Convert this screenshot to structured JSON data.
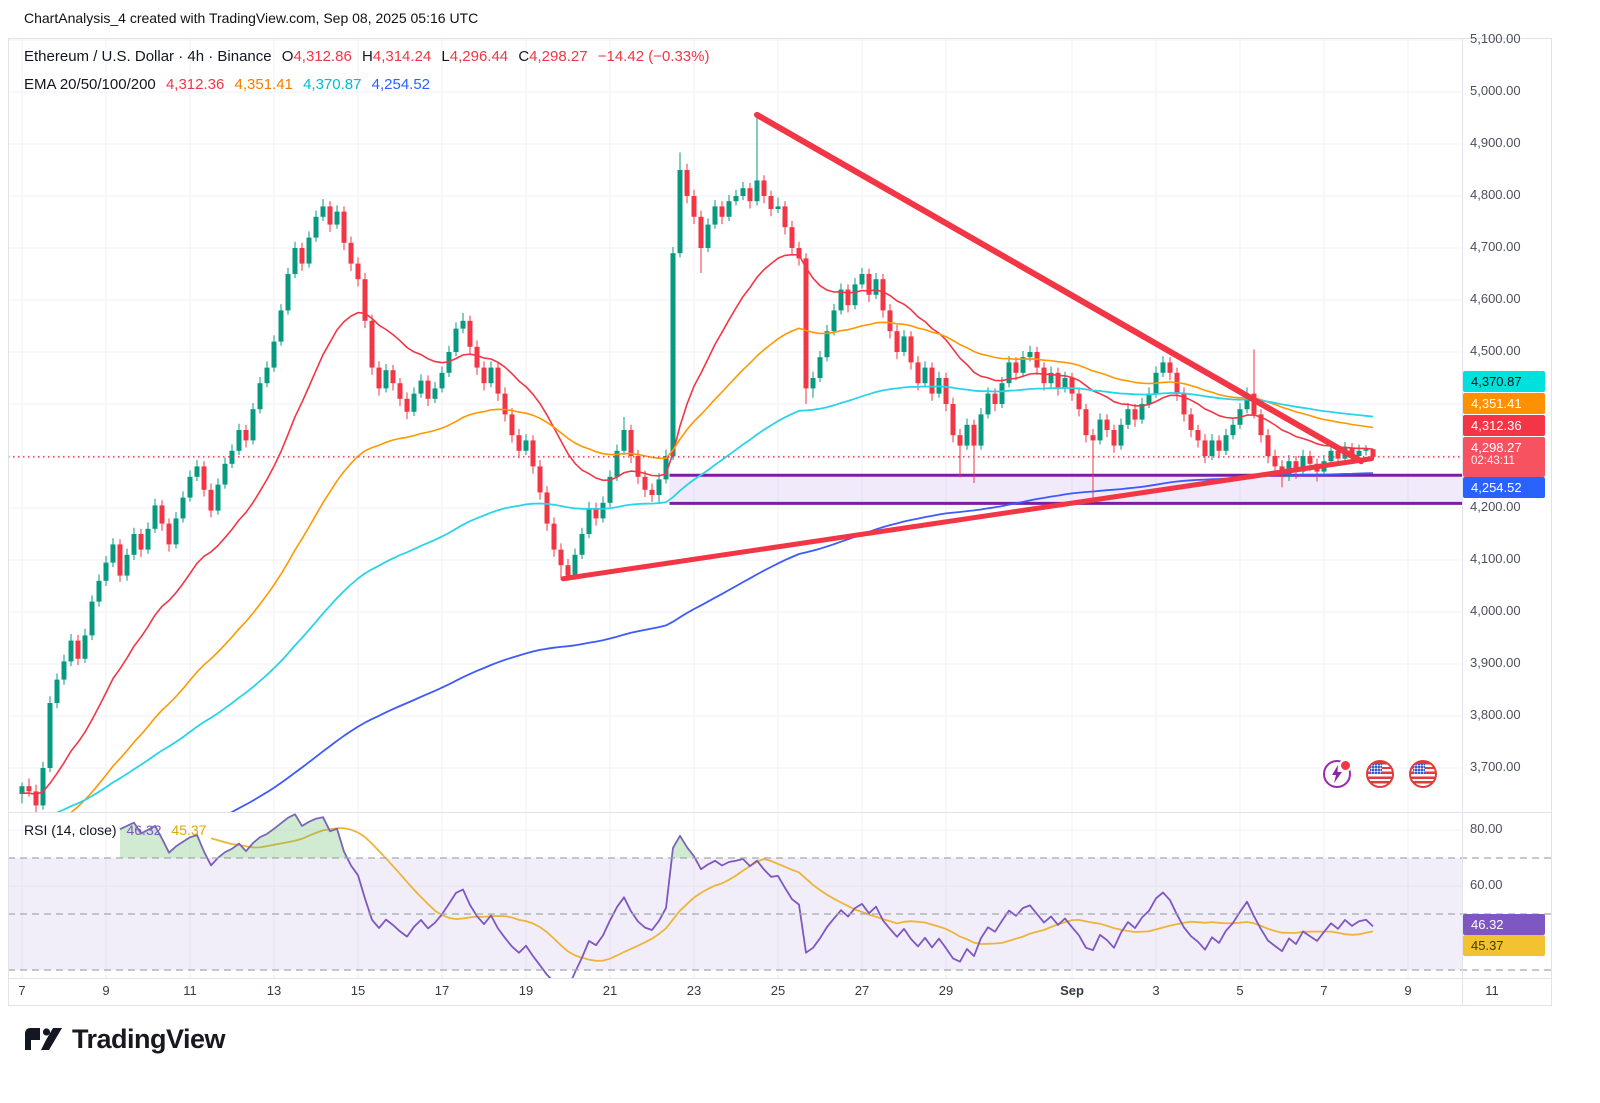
{
  "header": {
    "info_line": "ChartAnalysis_4 created with TradingView.com, Sep 08, 2025 05:16 UTC",
    "symbol": "Ethereum / U.S. Dollar · 4h · Binance",
    "o_label": "O",
    "o_val": "4,312.86",
    "h_label": "H",
    "h_val": "4,314.24",
    "l_label": "L",
    "l_val": "4,296.44",
    "c_label": "C",
    "c_val": "4,298.27",
    "change": "−14.42 (−0.33%)",
    "ema_label": "EMA 20/50/100/200",
    "ema_vals": [
      "4,312.36",
      "4,351.41",
      "4,370.87",
      "4,254.52"
    ]
  },
  "rsi_header": {
    "label": "RSI (14, close)",
    "value": "46.32",
    "ma_value": "45.37"
  },
  "footer": {
    "brand": "TradingView"
  },
  "icons": {
    "gauge": "technicals-gauge",
    "flag1": "us-flag",
    "flag2": "us-flag"
  },
  "chart_data": {
    "type": "candlestick",
    "title": "Ethereum / U.S. Dollar 4h Binance",
    "timeframe": "4h",
    "start_time": "Aug 7 00:00",
    "end_time": "Sep 8 04:00",
    "ylim": [
      3615,
      5104
    ],
    "colors": {
      "up": "#089981",
      "down": "#f23645"
    },
    "y_axis": {
      "prices": [
        5100,
        5000,
        4900,
        4800,
        4700,
        4600,
        4500,
        4400,
        4300,
        4200,
        4100,
        4000,
        3900,
        3800,
        3700
      ]
    },
    "x_axis": {
      "ticks": [
        {
          "l": "7",
          "d": 0
        },
        {
          "l": "9",
          "d": 2
        },
        {
          "l": "11",
          "d": 4
        },
        {
          "l": "13",
          "d": 6
        },
        {
          "l": "15",
          "d": 8
        },
        {
          "l": "17",
          "d": 10
        },
        {
          "l": "19",
          "d": 12
        },
        {
          "l": "21",
          "d": 14
        },
        {
          "l": "23",
          "d": 16
        },
        {
          "l": "25",
          "d": 18
        },
        {
          "l": "27",
          "d": 20
        },
        {
          "l": "29",
          "d": 22
        },
        {
          "l": "Sep",
          "d": 25,
          "b": 1
        },
        {
          "l": "3",
          "d": 27
        },
        {
          "l": "5",
          "d": 29
        },
        {
          "l": "7",
          "d": 31
        },
        {
          "l": "9",
          "d": 33
        },
        {
          "l": "11",
          "d": 35
        }
      ]
    },
    "candles": [
      [
        3650,
        3672,
        3632,
        3665
      ],
      [
        3665,
        3680,
        3645,
        3655
      ],
      [
        3655,
        3668,
        3612,
        3628
      ],
      [
        3628,
        3712,
        3620,
        3700
      ],
      [
        3700,
        3838,
        3692,
        3825
      ],
      [
        3825,
        3882,
        3815,
        3870
      ],
      [
        3870,
        3918,
        3860,
        3905
      ],
      [
        3905,
        3958,
        3896,
        3945
      ],
      [
        3945,
        3956,
        3898,
        3910
      ],
      [
        3910,
        3968,
        3902,
        3955
      ],
      [
        3955,
        4032,
        3946,
        4020
      ],
      [
        4020,
        4072,
        4010,
        4060
      ],
      [
        4060,
        4108,
        4050,
        4095
      ],
      [
        4095,
        4142,
        4086,
        4130
      ],
      [
        4130,
        4140,
        4058,
        4070
      ],
      [
        4070,
        4122,
        4060,
        4110
      ],
      [
        4110,
        4162,
        4100,
        4150
      ],
      [
        4150,
        4160,
        4106,
        4120
      ],
      [
        4120,
        4172,
        4112,
        4160
      ],
      [
        4160,
        4218,
        4152,
        4205
      ],
      [
        4205,
        4215,
        4156,
        4170
      ],
      [
        4170,
        4180,
        4116,
        4130
      ],
      [
        4130,
        4192,
        4122,
        4180
      ],
      [
        4180,
        4232,
        4172,
        4220
      ],
      [
        4220,
        4272,
        4212,
        4260
      ],
      [
        4260,
        4292,
        4252,
        4280
      ],
      [
        4280,
        4290,
        4222,
        4235
      ],
      [
        4235,
        4247,
        4182,
        4195
      ],
      [
        4195,
        4257,
        4187,
        4245
      ],
      [
        4245,
        4297,
        4237,
        4285
      ],
      [
        4285,
        4322,
        4277,
        4310
      ],
      [
        4310,
        4362,
        4302,
        4350
      ],
      [
        4350,
        4360,
        4316,
        4330
      ],
      [
        4330,
        4402,
        4322,
        4390
      ],
      [
        4390,
        4452,
        4382,
        4440
      ],
      [
        4440,
        4482,
        4432,
        4470
      ],
      [
        4470,
        4532,
        4462,
        4520
      ],
      [
        4520,
        4592,
        4512,
        4580
      ],
      [
        4580,
        4662,
        4572,
        4650
      ],
      [
        4650,
        4712,
        4642,
        4700
      ],
      [
        4700,
        4710,
        4656,
        4670
      ],
      [
        4670,
        4732,
        4662,
        4720
      ],
      [
        4720,
        4772,
        4712,
        4760
      ],
      [
        4760,
        4794,
        4752,
        4780
      ],
      [
        4780,
        4790,
        4731,
        4745
      ],
      [
        4745,
        4782,
        4737,
        4770
      ],
      [
        4770,
        4780,
        4696,
        4710
      ],
      [
        4710,
        4722,
        4656,
        4670
      ],
      [
        4670,
        4682,
        4626,
        4640
      ],
      [
        4640,
        4652,
        4546,
        4560
      ],
      [
        4560,
        4572,
        4456,
        4470
      ],
      [
        4470,
        4482,
        4416,
        4430
      ],
      [
        4430,
        4477,
        4422,
        4465
      ],
      [
        4465,
        4475,
        4426,
        4440
      ],
      [
        4440,
        4450,
        4396,
        4410
      ],
      [
        4410,
        4422,
        4371,
        4385
      ],
      [
        4385,
        4432,
        4377,
        4420
      ],
      [
        4420,
        4457,
        4412,
        4445
      ],
      [
        4445,
        4455,
        4396,
        4410
      ],
      [
        4410,
        4442,
        4402,
        4430
      ],
      [
        4430,
        4472,
        4422,
        4460
      ],
      [
        4460,
        4512,
        4452,
        4500
      ],
      [
        4500,
        4557,
        4492,
        4545
      ],
      [
        4545,
        4575,
        4536,
        4560
      ],
      [
        4560,
        4570,
        4496,
        4510
      ],
      [
        4510,
        4522,
        4456,
        4470
      ],
      [
        4470,
        4482,
        4426,
        4440
      ],
      [
        4440,
        4482,
        4432,
        4470
      ],
      [
        4470,
        4480,
        4406,
        4420
      ],
      [
        4420,
        4432,
        4366,
        4380
      ],
      [
        4380,
        4392,
        4326,
        4340
      ],
      [
        4340,
        4352,
        4296,
        4310
      ],
      [
        4310,
        4342,
        4302,
        4330
      ],
      [
        4330,
        4340,
        4266,
        4280
      ],
      [
        4280,
        4292,
        4216,
        4230
      ],
      [
        4230,
        4242,
        4156,
        4170
      ],
      [
        4170,
        4182,
        4106,
        4120
      ],
      [
        4120,
        4132,
        4062,
        4090
      ],
      [
        4090,
        4102,
        4060,
        4070
      ],
      [
        4070,
        4122,
        4062,
        4110
      ],
      [
        4110,
        4162,
        4102,
        4150
      ],
      [
        4150,
        4212,
        4142,
        4200
      ],
      [
        4200,
        4210,
        4166,
        4180
      ],
      [
        4180,
        4222,
        4172,
        4210
      ],
      [
        4210,
        4272,
        4202,
        4260
      ],
      [
        4260,
        4322,
        4252,
        4310
      ],
      [
        4310,
        4375,
        4302,
        4350
      ],
      [
        4350,
        4360,
        4286,
        4300
      ],
      [
        4300,
        4312,
        4246,
        4260
      ],
      [
        4260,
        4272,
        4221,
        4235
      ],
      [
        4235,
        4247,
        4212,
        4225
      ],
      [
        4225,
        4267,
        4210,
        4255
      ],
      [
        4255,
        4312,
        4247,
        4300
      ],
      [
        4300,
        4702,
        4292,
        4690
      ],
      [
        4690,
        4884,
        4682,
        4850
      ],
      [
        4850,
        4862,
        4786,
        4800
      ],
      [
        4800,
        4812,
        4746,
        4760
      ],
      [
        4760,
        4772,
        4652,
        4700
      ],
      [
        4700,
        4757,
        4692,
        4745
      ],
      [
        4745,
        4792,
        4737,
        4780
      ],
      [
        4780,
        4790,
        4746,
        4760
      ],
      [
        4760,
        4802,
        4752,
        4790
      ],
      [
        4790,
        4812,
        4782,
        4800
      ],
      [
        4800,
        4827,
        4792,
        4815
      ],
      [
        4815,
        4825,
        4776,
        4790
      ],
      [
        4790,
        4956,
        4782,
        4830
      ],
      [
        4830,
        4840,
        4786,
        4800
      ],
      [
        4800,
        4810,
        4761,
        4775
      ],
      [
        4775,
        4797,
        4767,
        4780
      ],
      [
        4780,
        4790,
        4726,
        4740
      ],
      [
        4740,
        4752,
        4686,
        4700
      ],
      [
        4700,
        4712,
        4666,
        4680
      ],
      [
        4680,
        4690,
        4400,
        4430
      ],
      [
        4430,
        4462,
        4412,
        4450
      ],
      [
        4450,
        4502,
        4442,
        4490
      ],
      [
        4490,
        4552,
        4482,
        4540
      ],
      [
        4540,
        4592,
        4532,
        4580
      ],
      [
        4580,
        4632,
        4572,
        4620
      ],
      [
        4620,
        4630,
        4576,
        4590
      ],
      [
        4590,
        4642,
        4582,
        4630
      ],
      [
        4630,
        4662,
        4622,
        4650
      ],
      [
        4650,
        4660,
        4596,
        4610
      ],
      [
        4610,
        4652,
        4602,
        4640
      ],
      [
        4640,
        4650,
        4566,
        4580
      ],
      [
        4580,
        4592,
        4526,
        4540
      ],
      [
        4540,
        4552,
        4486,
        4500
      ],
      [
        4500,
        4542,
        4492,
        4530
      ],
      [
        4530,
        4540,
        4466,
        4480
      ],
      [
        4480,
        4492,
        4426,
        4440
      ],
      [
        4440,
        4482,
        4432,
        4470
      ],
      [
        4470,
        4480,
        4406,
        4420
      ],
      [
        4420,
        4462,
        4412,
        4450
      ],
      [
        4450,
        4460,
        4386,
        4400
      ],
      [
        4400,
        4412,
        4326,
        4340
      ],
      [
        4340,
        4352,
        4259,
        4320
      ],
      [
        4320,
        4372,
        4312,
        4360
      ],
      [
        4360,
        4370,
        4248,
        4320
      ],
      [
        4320,
        4392,
        4312,
        4380
      ],
      [
        4380,
        4432,
        4372,
        4420
      ],
      [
        4420,
        4430,
        4386,
        4400
      ],
      [
        4400,
        4452,
        4392,
        4440
      ],
      [
        4440,
        4492,
        4432,
        4480
      ],
      [
        4480,
        4490,
        4446,
        4460
      ],
      [
        4460,
        4502,
        4452,
        4490
      ],
      [
        4490,
        4512,
        4482,
        4500
      ],
      [
        4500,
        4510,
        4456,
        4470
      ],
      [
        4470,
        4480,
        4426,
        4440
      ],
      [
        4440,
        4472,
        4432,
        4460
      ],
      [
        4460,
        4470,
        4416,
        4430
      ],
      [
        4430,
        4462,
        4422,
        4450
      ],
      [
        4450,
        4460,
        4406,
        4420
      ],
      [
        4420,
        4432,
        4376,
        4390
      ],
      [
        4390,
        4400,
        4326,
        4340
      ],
      [
        4340,
        4352,
        4215,
        4330
      ],
      [
        4330,
        4382,
        4322,
        4370
      ],
      [
        4370,
        4380,
        4336,
        4350
      ],
      [
        4350,
        4360,
        4306,
        4320
      ],
      [
        4320,
        4372,
        4312,
        4360
      ],
      [
        4360,
        4402,
        4352,
        4390
      ],
      [
        4390,
        4400,
        4356,
        4370
      ],
      [
        4370,
        4412,
        4362,
        4400
      ],
      [
        4400,
        4432,
        4392,
        4420
      ],
      [
        4420,
        4472,
        4412,
        4460
      ],
      [
        4460,
        4492,
        4452,
        4480
      ],
      [
        4480,
        4490,
        4446,
        4460
      ],
      [
        4460,
        4470,
        4406,
        4420
      ],
      [
        4420,
        4432,
        4366,
        4380
      ],
      [
        4380,
        4392,
        4336,
        4350
      ],
      [
        4350,
        4360,
        4316,
        4330
      ],
      [
        4330,
        4342,
        4286,
        4300
      ],
      [
        4300,
        4342,
        4292,
        4330
      ],
      [
        4330,
        4340,
        4296,
        4310
      ],
      [
        4310,
        4352,
        4302,
        4340
      ],
      [
        4340,
        4372,
        4332,
        4360
      ],
      [
        4360,
        4402,
        4352,
        4390
      ],
      [
        4390,
        4432,
        4382,
        4420
      ],
      [
        4420,
        4505,
        4372,
        4380
      ],
      [
        4380,
        4390,
        4326,
        4340
      ],
      [
        4340,
        4352,
        4286,
        4300
      ],
      [
        4300,
        4312,
        4266,
        4280
      ],
      [
        4280,
        4292,
        4240,
        4260
      ],
      [
        4260,
        4302,
        4252,
        4290
      ],
      [
        4290,
        4300,
        4256,
        4270
      ],
      [
        4270,
        4312,
        4262,
        4300
      ],
      [
        4300,
        4310,
        4271,
        4285
      ],
      [
        4285,
        4295,
        4251,
        4270
      ],
      [
        4270,
        4302,
        4262,
        4290
      ],
      [
        4290,
        4322,
        4282,
        4310
      ],
      [
        4310,
        4320,
        4281,
        4295
      ],
      [
        4295,
        4327,
        4287,
        4315
      ],
      [
        4315,
        4325,
        4286,
        4300
      ],
      [
        4300,
        4322,
        4292,
        4310
      ],
      [
        4310,
        4321,
        4301,
        4313
      ],
      [
        4312.86,
        4314.24,
        4296.44,
        4298.27
      ]
    ],
    "emas": {
      "periods": [
        20,
        50,
        100,
        200
      ],
      "current": [
        4312.36,
        4351.41,
        4370.87,
        4254.52
      ],
      "seeds": [
        3650,
        3550,
        3600,
        3450
      ],
      "colors": [
        "#f23645",
        "#ff9800",
        "#2ad3e8",
        "#3d5afe"
      ],
      "widths": [
        1.6,
        1.6,
        1.8,
        1.8
      ]
    },
    "trendlines": [
      {
        "i1": 105,
        "p1": 4956,
        "i2": 191.3,
        "p2": 4290,
        "color": "#f23645",
        "width": 6
      },
      {
        "i1": 77.3,
        "p1": 4064,
        "i2": 192.8,
        "p2": 4295,
        "color": "#f23645",
        "width": 5
      }
    ],
    "zone": {
      "start_i": 92.5,
      "price_top": 4263,
      "price_bottom": 4209,
      "border": "#7b1fa2",
      "fill": "rgba(150,90,220,0.13)"
    },
    "current_price_line": {
      "price": 4298.27,
      "color": "#f23645"
    },
    "price_badges": [
      {
        "text": "4,370.87",
        "price": 4370.87,
        "bg": "#00e0dd",
        "fg": "#10141c"
      },
      {
        "text": "4,351.41",
        "price": 4351.41,
        "bg": "#ff9100",
        "fg": "#ffffff"
      },
      {
        "text": "4,312.36",
        "price": 4312.36,
        "bg": "#f23645",
        "fg": "#ffffff"
      },
      {
        "text": "4,298.27",
        "price": 4298.27,
        "bg": "#f7525f",
        "fg": "#ffffff",
        "sub": "02:43:11"
      },
      {
        "text": "4,254.52",
        "price": 4254.52,
        "bg": "#2962ff",
        "fg": "#ffffff"
      }
    ],
    "rsi": {
      "period": 14,
      "ma_period": 14,
      "value": 46.32,
      "ma_value": 45.37,
      "line": "#7e57c2",
      "ma_line": "#edb43a",
      "levels": [
        70,
        50,
        30
      ],
      "band": [
        70,
        30
      ],
      "band_fill": "rgba(126,87,194,0.10)",
      "over_fill": "rgba(102,187,106,0.30)",
      "axis": [
        80,
        60
      ],
      "badges": [
        {
          "text": "46.32",
          "value": 46.32,
          "bg": "#7e57c2",
          "fg": "#ffffff"
        },
        {
          "text": "45.37",
          "value": 45.37,
          "bg": "#f2c230",
          "fg": "#463600"
        }
      ]
    }
  }
}
